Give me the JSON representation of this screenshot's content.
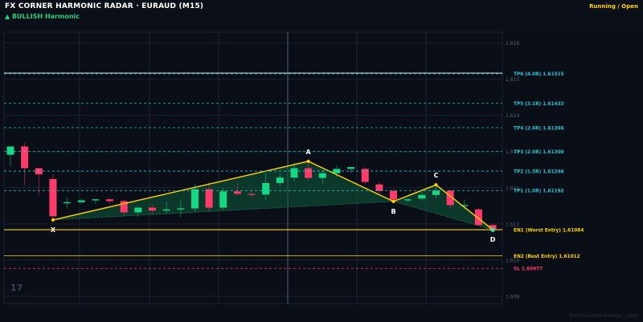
{
  "header": {
    "title": "FX CORNER HARMONIC RADAR  ·  EURAUD (M15)",
    "pattern": "▲ BULLISH  Harmonic",
    "status": "Running / Open"
  },
  "watermark": "17",
  "footnote": "fxcorner.net/harmonic_radar",
  "colors": {
    "background": "#0a0e17",
    "bull": "#14d882",
    "bear": "#ff3b6b",
    "pattern_line": "#ffd400",
    "tp_line": "#1fc7d4",
    "entry_line": "#ffd400",
    "sl_line": "#ff3b6b",
    "fill": "#0f5a3c"
  },
  "chart_data": {
    "type": "candlestick",
    "symbol": "EURAUD",
    "timeframe": "M15",
    "ylim": [
      1.6088,
      1.6163
    ],
    "y_ticks": [
      "1.616",
      "1.615",
      "1.614",
      "1.613",
      "1.612",
      "1.611",
      "1.610",
      "1.609"
    ],
    "candles": [
      {
        "o": 1.61291,
        "h": 1.61308,
        "l": 1.61258,
        "c": 1.61314
      },
      {
        "o": 1.61314,
        "h": 1.61325,
        "l": 1.61206,
        "c": 1.61254
      },
      {
        "o": 1.61254,
        "h": 1.61254,
        "l": 1.61179,
        "c": 1.61237
      },
      {
        "o": 1.61224,
        "h": 1.61237,
        "l": 1.61106,
        "c": 1.61121
      },
      {
        "o": 1.61157,
        "h": 1.61173,
        "l": 1.61143,
        "c": 1.6116
      },
      {
        "o": 1.6116,
        "h": 1.6117,
        "l": 1.61155,
        "c": 1.61165
      },
      {
        "o": 1.61165,
        "h": 1.6117,
        "l": 1.61155,
        "c": 1.61168
      },
      {
        "o": 1.61168,
        "h": 1.61172,
        "l": 1.61155,
        "c": 1.61163
      },
      {
        "o": 1.61163,
        "h": 1.61168,
        "l": 1.61123,
        "c": 1.61132
      },
      {
        "o": 1.61132,
        "h": 1.6115,
        "l": 1.6112,
        "c": 1.61145
      },
      {
        "o": 1.61145,
        "h": 1.61155,
        "l": 1.61127,
        "c": 1.61137
      },
      {
        "o": 1.61137,
        "h": 1.61162,
        "l": 1.61127,
        "c": 1.6114
      },
      {
        "o": 1.6114,
        "h": 1.61165,
        "l": 1.61118,
        "c": 1.61143
      },
      {
        "o": 1.61143,
        "h": 1.6121,
        "l": 1.61135,
        "c": 1.61196
      },
      {
        "o": 1.61196,
        "h": 1.61215,
        "l": 1.61135,
        "c": 1.61145
      },
      {
        "o": 1.61145,
        "h": 1.612,
        "l": 1.6114,
        "c": 1.6119
      },
      {
        "o": 1.6119,
        "h": 1.61215,
        "l": 1.61178,
        "c": 1.61183
      },
      {
        "o": 1.61183,
        "h": 1.61195,
        "l": 1.61175,
        "c": 1.61181
      },
      {
        "o": 1.61181,
        "h": 1.6124,
        "l": 1.61165,
        "c": 1.61213
      },
      {
        "o": 1.61213,
        "h": 1.6124,
        "l": 1.61205,
        "c": 1.61228
      },
      {
        "o": 1.61228,
        "h": 1.6127,
        "l": 1.61218,
        "c": 1.61254
      },
      {
        "o": 1.61254,
        "h": 1.61275,
        "l": 1.6122,
        "c": 1.61227
      },
      {
        "o": 1.61227,
        "h": 1.6125,
        "l": 1.61212,
        "c": 1.6124
      },
      {
        "o": 1.6124,
        "h": 1.61262,
        "l": 1.6123,
        "c": 1.61252
      },
      {
        "o": 1.61252,
        "h": 1.61259,
        "l": 1.6124,
        "c": 1.61257
      },
      {
        "o": 1.61252,
        "h": 1.61258,
        "l": 1.6121,
        "c": 1.61216
      },
      {
        "o": 1.61209,
        "h": 1.61215,
        "l": 1.6118,
        "c": 1.61191
      },
      {
        "o": 1.61191,
        "h": 1.61198,
        "l": 1.61156,
        "c": 1.61167
      },
      {
        "o": 1.61165,
        "h": 1.6117,
        "l": 1.6116,
        "c": 1.61168
      },
      {
        "o": 1.6117,
        "h": 1.61188,
        "l": 1.61165,
        "c": 1.6118
      },
      {
        "o": 1.6118,
        "h": 1.61202,
        "l": 1.6117,
        "c": 1.61192
      },
      {
        "o": 1.61192,
        "h": 1.61196,
        "l": 1.61142,
        "c": 1.61152
      },
      {
        "o": 1.61152,
        "h": 1.61168,
        "l": 1.6114,
        "c": 1.61152
      },
      {
        "o": 1.6114,
        "h": 1.61143,
        "l": 1.61094,
        "c": 1.61097
      },
      {
        "o": 1.61097,
        "h": 1.611,
        "l": 1.61084,
        "c": 1.61086
      }
    ],
    "pattern": {
      "name": "Bullish Harmonic",
      "points": [
        {
          "label": "X",
          "candle": 3,
          "price": 1.61111
        },
        {
          "label": "A",
          "candle": 21,
          "price": 1.61273
        },
        {
          "label": "B",
          "candle": 27,
          "price": 1.61162
        },
        {
          "label": "C",
          "candle": 30,
          "price": 1.61208
        },
        {
          "label": "D",
          "candle": 34,
          "price": 1.61084
        }
      ]
    },
    "levels": [
      {
        "label": "TP6 (4.0R)  1.61515",
        "price": 1.61515,
        "kind": "tp"
      },
      {
        "label": "TP5 (3.1R)  1.61433",
        "price": 1.61433,
        "kind": "tp"
      },
      {
        "label": "TP4 (2.6R)  1.61366",
        "price": 1.61366,
        "kind": "tp"
      },
      {
        "label": "TP3 (2.0R)  1.61300",
        "price": 1.613,
        "kind": "tp"
      },
      {
        "label": "TP2 (1.5R)  1.61246",
        "price": 1.61246,
        "kind": "tp"
      },
      {
        "label": "TP1 (1.0R)  1.61192",
        "price": 1.61192,
        "kind": "tp"
      },
      {
        "label": "EN1 (Worst Entry)  1.61084",
        "price": 1.61084,
        "kind": "entry"
      },
      {
        "label": "EN2 (Best Entry)  1.61012",
        "price": 1.61012,
        "kind": "entry"
      },
      {
        "label": "SL  1.60977",
        "price": 1.60977,
        "kind": "sl"
      }
    ]
  }
}
